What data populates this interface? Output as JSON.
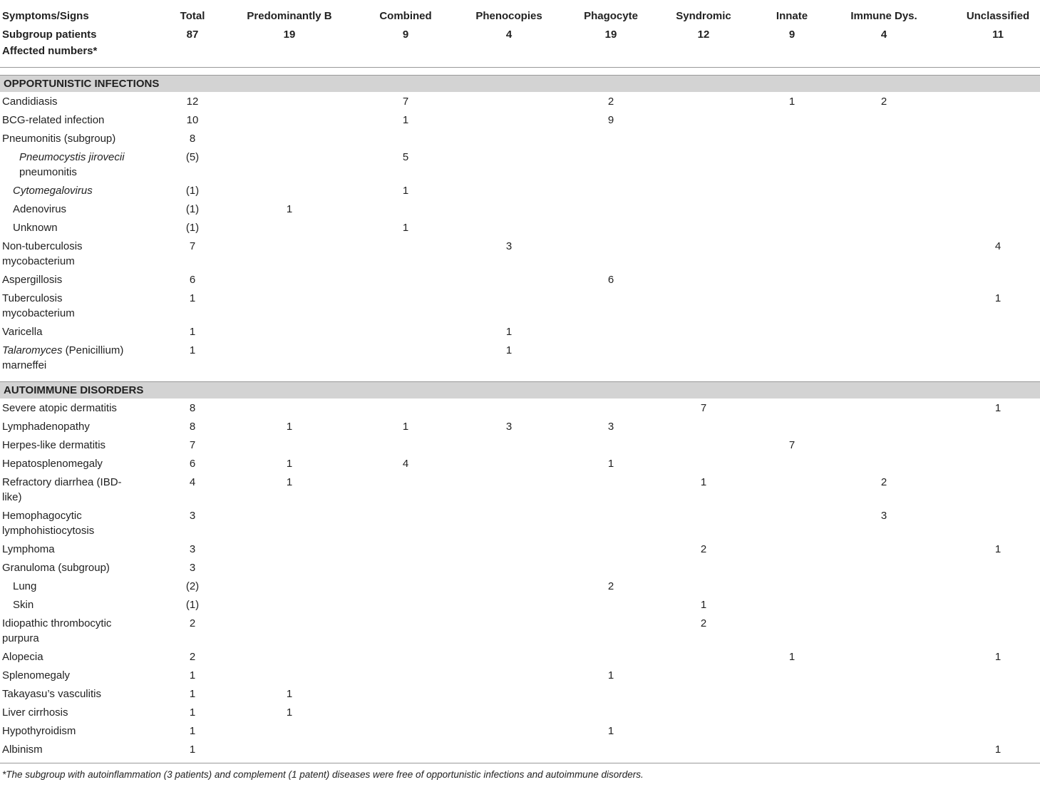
{
  "table": {
    "header": {
      "label": "Symptoms/Signs",
      "columns": [
        "Total",
        "Predominantly B",
        "Combined",
        "Phenocopies",
        "Phagocyte",
        "Syndromic",
        "Innate",
        "Immune Dys.",
        "Unclassified"
      ]
    },
    "subgroup": {
      "label": "Subgroup patients",
      "values": [
        87,
        19,
        9,
        4,
        19,
        12,
        9,
        4,
        11
      ]
    },
    "affected": {
      "label": "Affected numbers*"
    },
    "sections": [
      {
        "title": "OPPORTUNISTIC INFECTIONS",
        "rows": [
          {
            "label": "Candidiasis",
            "cells": [
              12,
              null,
              7,
              null,
              2,
              null,
              1,
              2,
              null
            ]
          },
          {
            "label": "BCG-related infection",
            "cells": [
              10,
              null,
              1,
              null,
              9,
              null,
              null,
              null,
              null
            ]
          },
          {
            "label": "Pneumonitis (subgroup)",
            "cells": [
              8,
              null,
              null,
              null,
              null,
              null,
              null,
              null,
              null
            ]
          },
          {
            "label": [
              {
                "text": "Pneumocystis jirovecii",
                "italic": true
              },
              {
                "text": " pneumonitis"
              }
            ],
            "level": 2,
            "cells": [
              "(5)",
              null,
              5,
              null,
              null,
              null,
              null,
              null,
              null
            ]
          },
          {
            "label": [
              {
                "text": "Cytomegalovirus",
                "italic": true
              }
            ],
            "level": 1,
            "cells": [
              "(1)",
              null,
              1,
              null,
              null,
              null,
              null,
              null,
              null
            ]
          },
          {
            "label": "Adenovirus",
            "level": 1,
            "cells": [
              "(1)",
              1,
              null,
              null,
              null,
              null,
              null,
              null,
              null
            ]
          },
          {
            "label": "Unknown",
            "level": 1,
            "cells": [
              "(1)",
              null,
              1,
              null,
              null,
              null,
              null,
              null,
              null
            ]
          },
          {
            "label": "Non-tuberculosis mycobacterium",
            "cells": [
              7,
              null,
              null,
              3,
              null,
              null,
              null,
              null,
              4
            ]
          },
          {
            "label": "Aspergillosis",
            "cells": [
              6,
              null,
              null,
              null,
              6,
              null,
              null,
              null,
              null
            ]
          },
          {
            "label": "Tuberculosis mycobacterium",
            "cells": [
              1,
              null,
              null,
              null,
              null,
              null,
              null,
              null,
              1
            ]
          },
          {
            "label": "Varicella",
            "cells": [
              1,
              null,
              null,
              1,
              null,
              null,
              null,
              null,
              null
            ]
          },
          {
            "label": [
              {
                "text": "Talaromyces",
                "italic": true
              },
              {
                "text": " (Penicillium) marneffei"
              }
            ],
            "cells": [
              1,
              null,
              null,
              1,
              null,
              null,
              null,
              null,
              null
            ]
          }
        ]
      },
      {
        "title": "AUTOIMMUNE DISORDERS",
        "rows": [
          {
            "label": "Severe atopic dermatitis",
            "cells": [
              8,
              null,
              null,
              null,
              null,
              7,
              null,
              null,
              1
            ]
          },
          {
            "label": "Lymphadenopathy",
            "cells": [
              8,
              1,
              1,
              3,
              3,
              null,
              null,
              null,
              null
            ]
          },
          {
            "label": "Herpes-like dermatitis",
            "cells": [
              7,
              null,
              null,
              null,
              null,
              null,
              7,
              null,
              null
            ]
          },
          {
            "label": "Hepatosplenomegaly",
            "cells": [
              6,
              1,
              4,
              null,
              1,
              null,
              null,
              null,
              null
            ]
          },
          {
            "label": "Refractory diarrhea (IBD-like)",
            "cells": [
              4,
              1,
              null,
              null,
              null,
              1,
              null,
              2,
              null
            ]
          },
          {
            "label": "Hemophagocytic lymphohistiocytosis",
            "cells": [
              3,
              null,
              null,
              null,
              null,
              null,
              null,
              3,
              null
            ]
          },
          {
            "label": "Lymphoma",
            "cells": [
              3,
              null,
              null,
              null,
              null,
              2,
              null,
              null,
              1
            ]
          },
          {
            "label": "Granuloma (subgroup)",
            "cells": [
              3,
              null,
              null,
              null,
              null,
              null,
              null,
              null,
              null
            ]
          },
          {
            "label": "Lung",
            "level": 1,
            "cells": [
              "(2)",
              null,
              null,
              null,
              2,
              null,
              null,
              null,
              null
            ]
          },
          {
            "label": "Skin",
            "level": 1,
            "cells": [
              "(1)",
              null,
              null,
              null,
              null,
              1,
              null,
              null,
              null
            ]
          },
          {
            "label": "Idiopathic thrombocytic purpura",
            "cells": [
              2,
              null,
              null,
              null,
              null,
              2,
              null,
              null,
              null
            ]
          },
          {
            "label": "Alopecia",
            "cells": [
              2,
              null,
              null,
              null,
              null,
              null,
              1,
              null,
              1
            ]
          },
          {
            "label": "Splenomegaly",
            "cells": [
              1,
              null,
              null,
              null,
              1,
              null,
              null,
              null,
              null
            ]
          },
          {
            "label": "Takayasu’s vasculitis",
            "cells": [
              1,
              1,
              null,
              null,
              null,
              null,
              null,
              null,
              null
            ]
          },
          {
            "label": "Liver cirrhosis",
            "cells": [
              1,
              1,
              null,
              null,
              null,
              null,
              null,
              null,
              null
            ]
          },
          {
            "label": "Hypothyroidism",
            "cells": [
              1,
              null,
              null,
              null,
              1,
              null,
              null,
              null,
              null
            ]
          },
          {
            "label": "Albinism",
            "cells": [
              1,
              null,
              null,
              null,
              null,
              null,
              null,
              null,
              1
            ]
          }
        ]
      }
    ],
    "footnote": "*The subgroup with autoinflammation (3 patients) and complement (1 patent) diseases were free of opportunistic infections and autoimmune disorders."
  }
}
